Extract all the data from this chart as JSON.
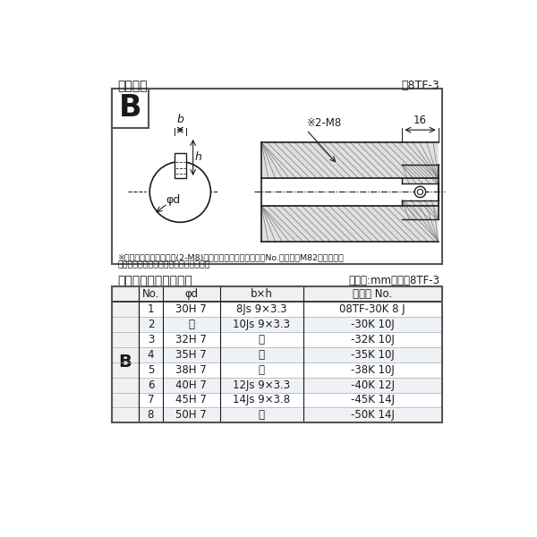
{
  "bg_color": "#f0f0f0",
  "white": "#ffffff",
  "black": "#1a1a1a",
  "gray_light": "#d8dde2",
  "gray_row": "#eef2f6",
  "title_diagram": "軸穴形状",
  "fig_label": "囸8TF-3",
  "table_title": "軸穴形状コード一覧表",
  "table_unit": "（単位:mm）　表8TF-3",
  "note1": "※セットボルト用タップ(2-M8)が必要な場合は右記コードNo.の末尾にM82を付ける。",
  "note2": "（セットボルトは付属されています。）",
  "col_headers": [
    "No.",
    "φd",
    "b×h",
    "コード No."
  ],
  "rows": [
    [
      "1",
      "30H 7",
      "8Js 9×3.3",
      "08TF-30K 8 J"
    ],
    [
      "2",
      "《",
      "10Js 9×3.3",
      "-30K 10J"
    ],
    [
      "3",
      "32H 7",
      "《",
      "-32K 10J"
    ],
    [
      "4",
      "35H 7",
      "《",
      "-35K 10J"
    ],
    [
      "5",
      "38H 7",
      "《",
      "-38K 10J"
    ],
    [
      "6",
      "40H 7",
      "12Js 9×3.3",
      "-40K 12J"
    ],
    [
      "7",
      "45H 7",
      "14Js 9×3.8",
      "-45K 14J"
    ],
    [
      "8",
      "50H 7",
      "《",
      "-50K 14J"
    ]
  ],
  "b_label": "B",
  "ditto": "《"
}
